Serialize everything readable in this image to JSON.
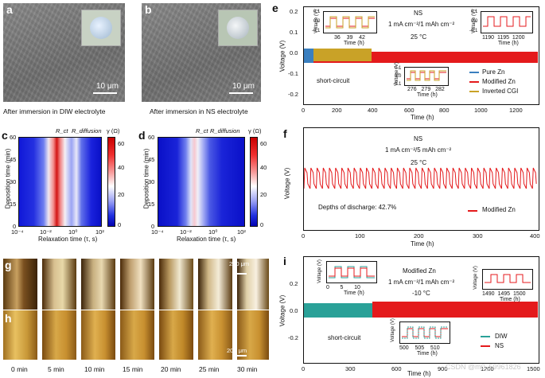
{
  "panel_a": {
    "label": "a",
    "scale": "10 μm",
    "caption": "After immersion in DIW electrolyte"
  },
  "panel_b": {
    "label": "b",
    "scale": "10 μm",
    "caption": "After immersion in NS electrolyte"
  },
  "panel_c": {
    "label": "c",
    "ylabel": "Deposition time (min)",
    "xlabel": "Relaxation time (τ, s)",
    "yticks": [
      "60",
      "45",
      "30",
      "15",
      "0"
    ],
    "xticks": [
      "10⁻⁴",
      "10⁻²",
      "10⁰",
      "10²"
    ],
    "peak1": "R_ct",
    "peak2": "R_diffusion",
    "cbar_title": "γ (Ω)",
    "cbar_ticks": [
      "60",
      "40",
      "20",
      "0"
    ]
  },
  "panel_d": {
    "label": "d",
    "ylabel": "Deposition time (min)",
    "xlabel": "Relaxation time (τ, s)",
    "yticks": [
      "60",
      "45",
      "30",
      "15",
      "0"
    ],
    "xticks": [
      "10⁻⁴",
      "10⁻²",
      "10⁰",
      "10²"
    ],
    "peak1": "R_ct",
    "peak2": "R_diffusion",
    "cbar_title": "γ (Ω)",
    "cbar_ticks": [
      "60",
      "40",
      "20",
      "0"
    ]
  },
  "panel_g": {
    "label": "g",
    "scale": "200 μm"
  },
  "panel_h": {
    "label": "h",
    "scale": "200 μm"
  },
  "gh_times": [
    "0 min",
    "5 min",
    "10 min",
    "15 min",
    "20 min",
    "25 min",
    "30 min"
  ],
  "panel_e": {
    "label": "e",
    "title1": "NS",
    "title2": "1 mA cm⁻²/1 mAh cm⁻²",
    "title3": "25 °C",
    "ylabel": "Voltage (V)",
    "xlabel": "Time (h)",
    "yticks": [
      "0.2",
      "0.1",
      "0.0",
      "-0.1",
      "-0.2"
    ],
    "xticks": [
      "0",
      "200",
      "400",
      "600",
      "800",
      "1000",
      "1200"
    ],
    "annotation": "short-circuit",
    "inset1": {
      "ylabel": "Voltage (V)",
      "xlabel": "Time (h)",
      "xticks": [
        "36",
        "39",
        "42"
      ],
      "yticks": [
        "0.1",
        "0.0",
        "-0.1"
      ]
    },
    "inset2": {
      "ylabel": "Voltage (V)",
      "xlabel": "Time (h)",
      "xticks": [
        "1190",
        "1195",
        "1200"
      ],
      "yticks": [
        "0.1",
        "0.0",
        "-0.1"
      ]
    },
    "inset3": {
      "ylabel": "Voltage (V)",
      "xlabel": "Time (h)",
      "xticks": [
        "276",
        "279",
        "282"
      ],
      "yticks": [
        "0.1",
        "0.0",
        "-0.1"
      ]
    },
    "legend": [
      {
        "name": "Pure Zn",
        "color": "#3a7fbf"
      },
      {
        "name": "Modified Zn",
        "color": "#e41a1c"
      },
      {
        "name": "Inverted CGI",
        "color": "#c9a227"
      }
    ]
  },
  "panel_f": {
    "label": "f",
    "title1": "NS",
    "title2": "1 mA cm⁻²/5 mAh cm⁻²",
    "title3": "25 °C",
    "ylabel": "Voltage (V)",
    "xlabel": "Time (h)",
    "xticks": [
      "0",
      "100",
      "200",
      "300",
      "400"
    ],
    "annotation": "Depths of discharge: 42.7%",
    "legend": [
      {
        "name": "Modified Zn",
        "color": "#e41a1c"
      }
    ]
  },
  "panel_i": {
    "label": "i",
    "title1": "Modified Zn",
    "title2": "1 mA cm⁻²/1 mAh cm⁻²",
    "title3": "-10 °C",
    "ylabel": "Voltage (V)",
    "xlabel": "Time (h)",
    "yticks": [
      "0.2",
      "0.0",
      "-0.2"
    ],
    "xticks": [
      "0",
      "300",
      "600",
      "900",
      "1200",
      "1500"
    ],
    "annotation": "short-circuit",
    "inset1": {
      "ylabel": "Voltage (V)",
      "xlabel": "Time (h)",
      "xticks": [
        "0",
        "5",
        "10"
      ]
    },
    "inset2": {
      "ylabel": "Voltage (V)",
      "xlabel": "Time (h)",
      "xticks": [
        "1490",
        "1495",
        "1500"
      ]
    },
    "inset3": {
      "ylabel": "Voltage (V)",
      "xlabel": "Time (h)",
      "xticks": [
        "500",
        "505",
        "510"
      ]
    },
    "legend": [
      {
        "name": "DIW",
        "color": "#2aa198"
      },
      {
        "name": "NS",
        "color": "#e41a1c"
      }
    ]
  },
  "watermark": "CSDN @m0_59961826",
  "colors": {
    "red": "#e41a1c",
    "blue": "#3a7fbf",
    "gold": "#c9a227",
    "teal": "#2aa198"
  }
}
